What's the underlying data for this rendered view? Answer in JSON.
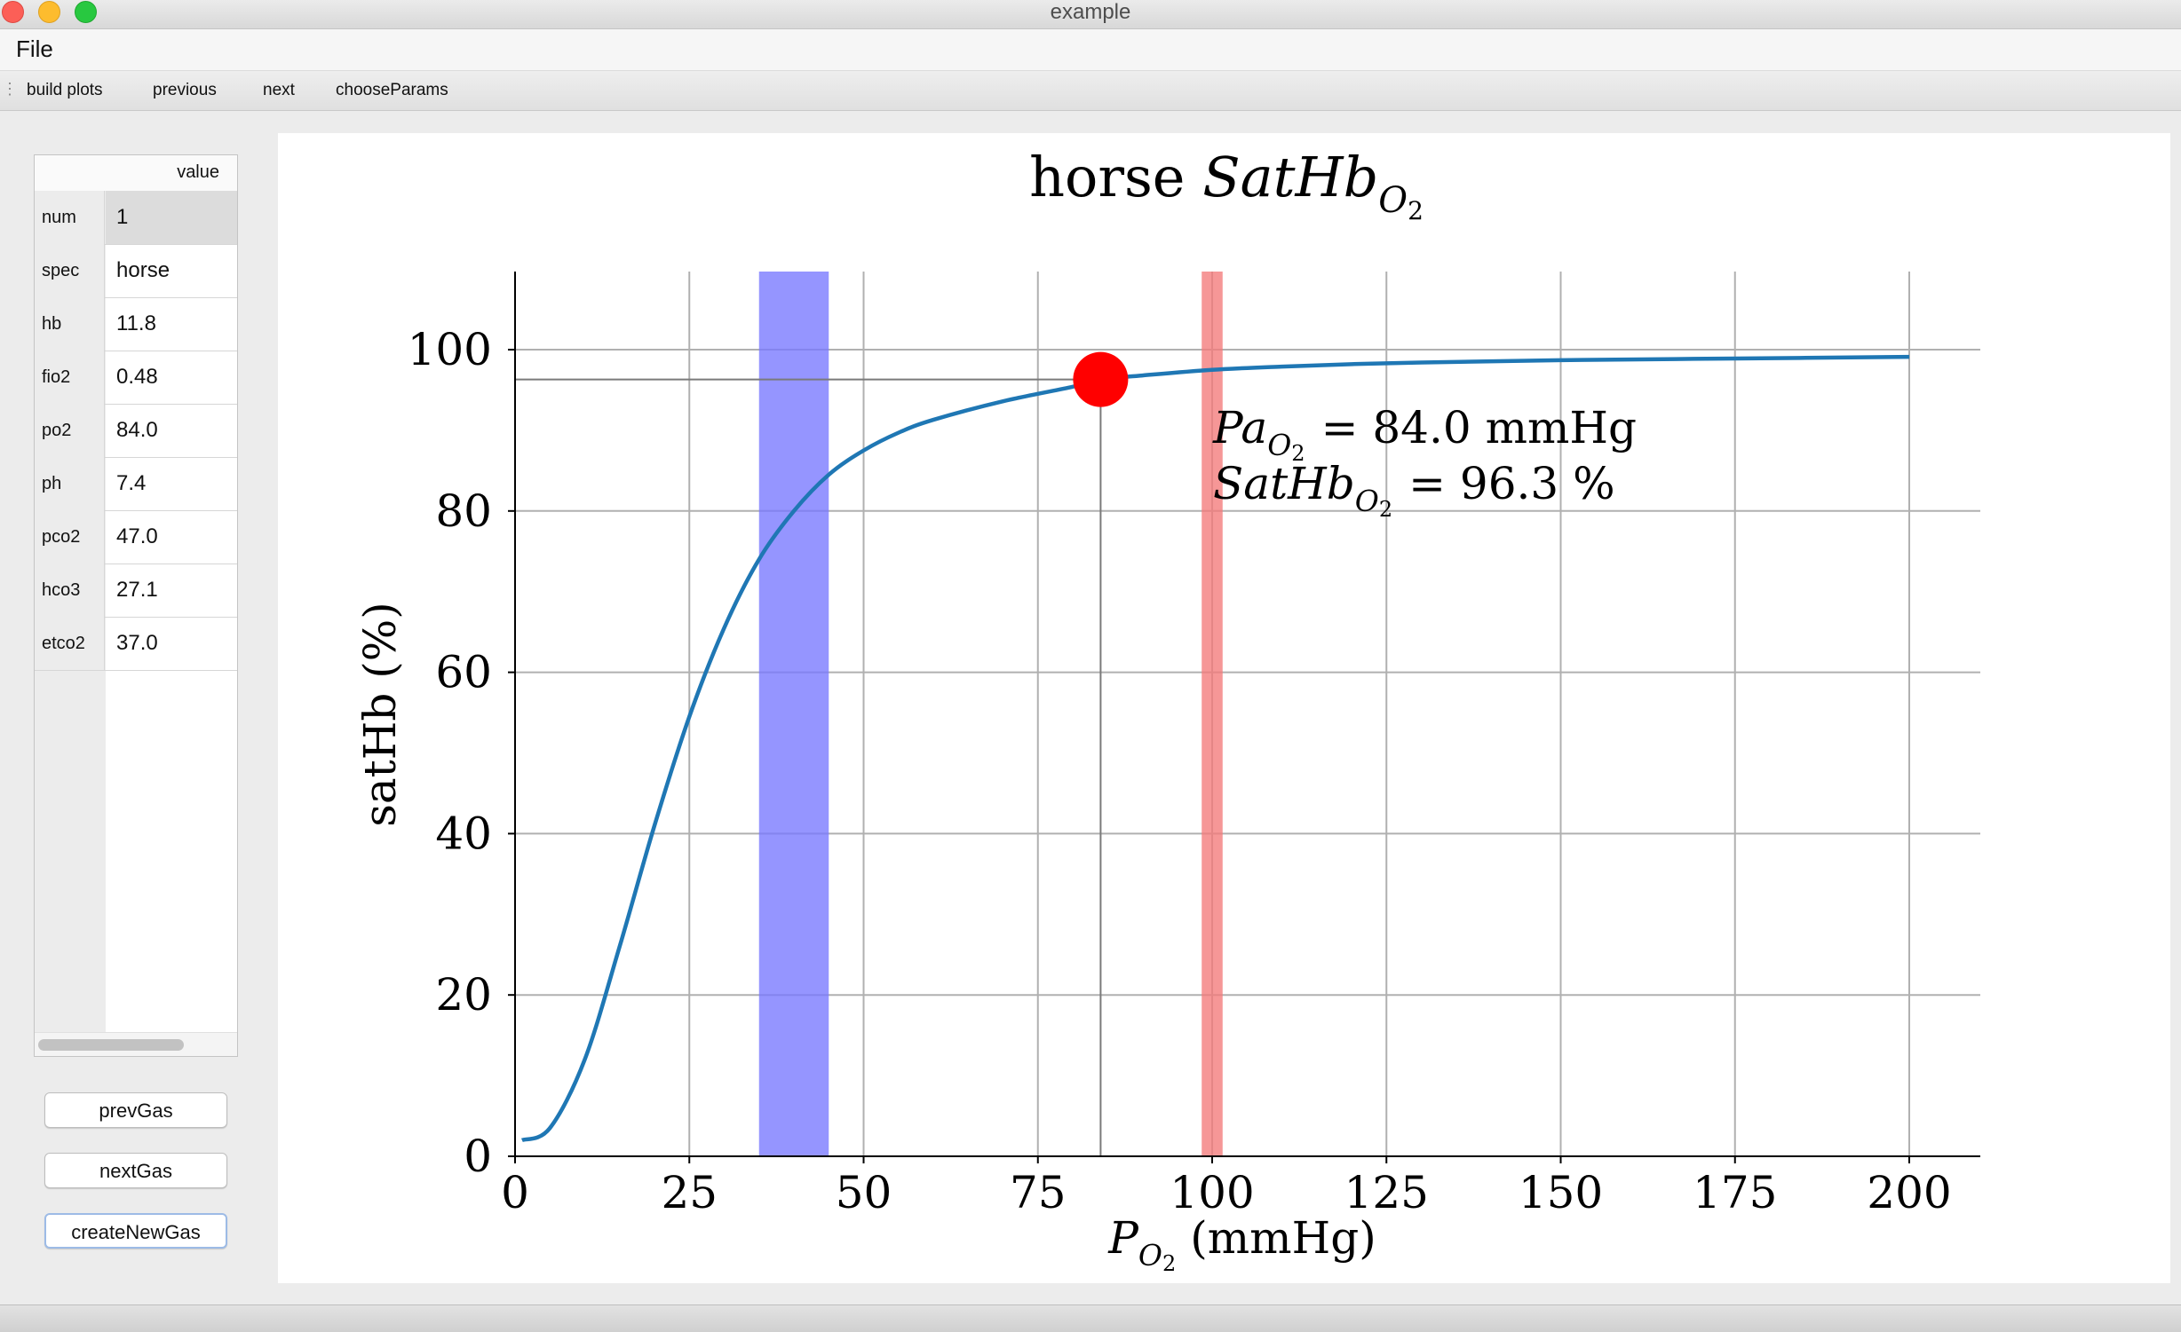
{
  "window": {
    "title": "example"
  },
  "menu": {
    "file": "File"
  },
  "toolbar": {
    "build_plots": "build plots",
    "previous": "previous",
    "next": "next",
    "choose_params": "chooseParams"
  },
  "params": {
    "header": "value",
    "rows": [
      {
        "name": "num",
        "value": "1"
      },
      {
        "name": "spec",
        "value": "horse"
      },
      {
        "name": "hb",
        "value": "11.8"
      },
      {
        "name": "fio2",
        "value": "0.48"
      },
      {
        "name": "po2",
        "value": "84.0"
      },
      {
        "name": "ph",
        "value": "7.4"
      },
      {
        "name": "pco2",
        "value": "47.0"
      },
      {
        "name": "hco3",
        "value": "27.1"
      },
      {
        "name": "etco2",
        "value": "37.0"
      }
    ]
  },
  "buttons": {
    "prev_gas": "prevGas",
    "next_gas": "nextGas",
    "create_new_gas": "createNewGas"
  },
  "chart_data": {
    "type": "line",
    "title_prefix": "horse",
    "title_math_main": "SatHb",
    "title_math_sub": "O",
    "title_math_subsub": "2",
    "xlabel_math_main": "P",
    "xlabel_math_sub": "O",
    "xlabel_math_subsub": "2",
    "xlabel_unit": "(mmHg)",
    "ylabel": "satHb (%)",
    "xlim": [
      0,
      210
    ],
    "ylim": [
      0,
      110
    ],
    "xticks": [
      0,
      25,
      50,
      75,
      100,
      125,
      150,
      175,
      200
    ],
    "yticks": [
      0,
      20,
      40,
      60,
      80,
      100
    ],
    "grid": true,
    "series": [
      {
        "x": [
          1,
          5,
          10,
          15,
          20,
          25,
          30,
          35,
          40,
          45,
          50,
          55,
          60,
          70,
          80,
          84,
          90,
          100,
          110,
          120,
          130,
          150,
          175,
          200
        ],
        "y": [
          2,
          3.5,
          12,
          26,
          41,
          54.5,
          65.5,
          74,
          80,
          84.5,
          87.5,
          89.7,
          91.3,
          93.6,
          95.4,
          96.3,
          96.8,
          97.5,
          97.9,
          98.2,
          98.4,
          98.7,
          98.9,
          99.1
        ]
      }
    ],
    "color_line": "#1f77b4",
    "point": {
      "x": 84.0,
      "y": 96.3,
      "color": "#ff0000"
    },
    "bands": [
      {
        "x0": 35,
        "x1": 45,
        "color": "#7777ff"
      },
      {
        "x0": 98.5,
        "x1": 101.5,
        "color": "#f47a7a"
      }
    ],
    "annotation": {
      "line1_math_main": "Pa",
      "line1_math_sub": "O",
      "line1_math_subsub": "2",
      "line1_value": "= 84.0 mmHg",
      "line2_math_main": "SatHb",
      "line2_math_sub": "O",
      "line2_math_subsub": "2",
      "line2_value": "= 96.3 %"
    }
  }
}
